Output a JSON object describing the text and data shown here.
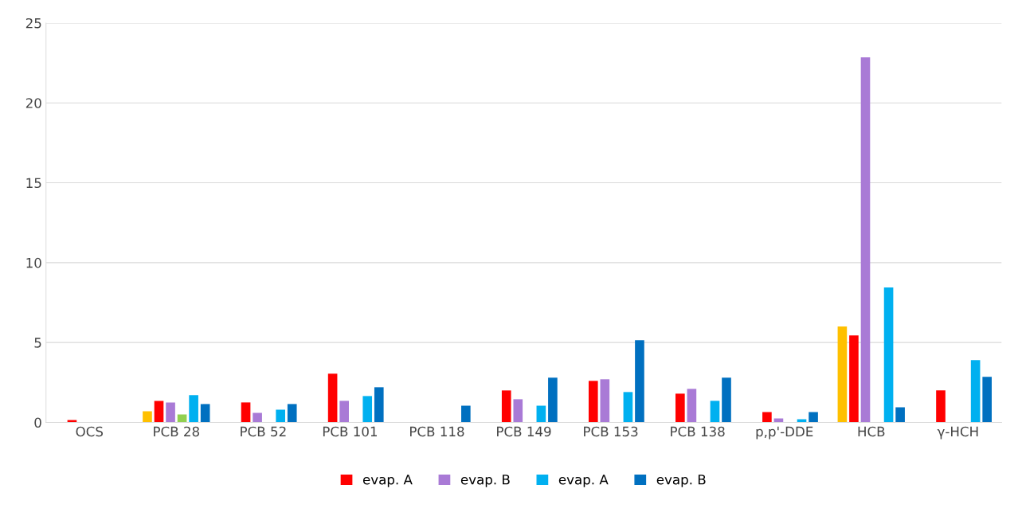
{
  "chart_data": {
    "type": "bar",
    "categories": [
      "OCS",
      "PCB 28",
      "PCB 52",
      "PCB 101",
      "PCB 118",
      "PCB 149",
      "PCB 153",
      "PCB 138",
      "p,p'-DDE",
      "HCB",
      "γ-HCH"
    ],
    "series": [
      {
        "color": "#ffc000",
        "values": [
          null,
          0.7,
          null,
          null,
          null,
          null,
          null,
          null,
          null,
          6.0,
          null
        ]
      },
      {
        "name": "evap. A",
        "color": "#ff0000",
        "values": [
          0.15,
          1.35,
          1.25,
          3.05,
          null,
          2.0,
          2.6,
          1.8,
          0.65,
          5.45,
          2.0
        ]
      },
      {
        "name": "evap. B",
        "color": "#a97ad6",
        "values": [
          null,
          1.25,
          0.6,
          1.35,
          null,
          1.45,
          2.7,
          2.1,
          0.25,
          22.85,
          null
        ]
      },
      {
        "color": "#92d050",
        "values": [
          null,
          0.5,
          null,
          null,
          null,
          null,
          null,
          null,
          null,
          null,
          null
        ]
      },
      {
        "name": "evap. A",
        "color": "#00b0f0",
        "values": [
          null,
          1.7,
          0.8,
          1.65,
          null,
          1.05,
          1.9,
          1.35,
          0.2,
          8.45,
          3.9
        ]
      },
      {
        "name": "evap. B",
        "color": "#0070c0",
        "values": [
          null,
          1.15,
          1.15,
          2.2,
          1.05,
          2.8,
          5.15,
          2.8,
          0.65,
          0.95,
          2.85
        ]
      }
    ],
    "ylim": [
      0,
      25
    ],
    "yticks": [
      0,
      5,
      10,
      15,
      20,
      25
    ],
    "grid": "y",
    "legend": "bottom"
  }
}
